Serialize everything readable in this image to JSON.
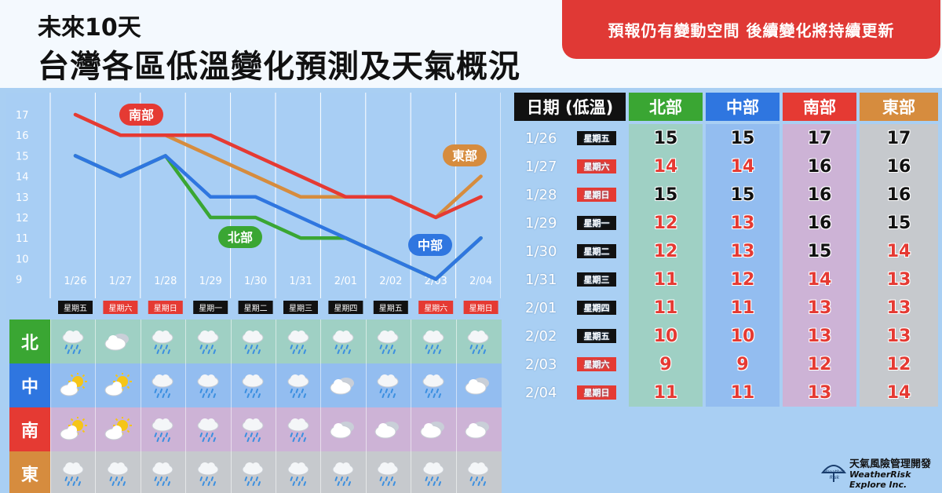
{
  "header": {
    "line1": "未來10天",
    "line2": "台灣各區低溫變化預測及天氣概況",
    "notice": "預報仍有變動空間 後續變化將持續更新"
  },
  "colors": {
    "north": "#3aa633",
    "central": "#2f76e0",
    "south": "#e53a33",
    "east": "#d68c3e"
  },
  "chart_data": {
    "type": "line",
    "categories": [
      "1/26",
      "1/27",
      "1/28",
      "1/29",
      "1/30",
      "1/31",
      "2/01",
      "2/02",
      "2/03",
      "2/04"
    ],
    "weekdays": [
      "星期五",
      "星期六",
      "星期日",
      "星期一",
      "星期二",
      "星期三",
      "星期四",
      "星期五",
      "星期六",
      "星期日"
    ],
    "weekend": [
      false,
      true,
      true,
      false,
      false,
      false,
      false,
      false,
      true,
      true
    ],
    "ylim": [
      9,
      17
    ],
    "yticks": [
      9,
      10,
      11,
      12,
      13,
      14,
      15,
      16,
      17
    ],
    "series": [
      {
        "name": "東部",
        "key": "east",
        "values": [
          17,
          16,
          16,
          15,
          14,
          13,
          13,
          13,
          12,
          14
        ]
      },
      {
        "name": "北部",
        "key": "north",
        "values": [
          15,
          14,
          15,
          12,
          12,
          11,
          11,
          10,
          9,
          11
        ]
      },
      {
        "name": "中部",
        "key": "central",
        "values": [
          15,
          14,
          15,
          13,
          13,
          12,
          11,
          10,
          9,
          11
        ]
      },
      {
        "name": "南部",
        "key": "south",
        "values": [
          17,
          16,
          16,
          16,
          15,
          14,
          13,
          13,
          12,
          13
        ]
      }
    ]
  },
  "weather": {
    "rows": [
      {
        "label": "北",
        "key": "north",
        "icons": [
          "rain",
          "cloudy",
          "rain",
          "rain",
          "rain",
          "rain",
          "rain",
          "rain",
          "rain",
          "rain"
        ]
      },
      {
        "label": "中",
        "key": "central",
        "icons": [
          "sun-cloud",
          "sun-cloud",
          "rain",
          "rain",
          "rain",
          "rain",
          "cloudy",
          "rain",
          "rain",
          "cloudy"
        ]
      },
      {
        "label": "南",
        "key": "south",
        "icons": [
          "sun-cloud",
          "sun-cloud",
          "rain",
          "rain",
          "rain",
          "rain",
          "cloudy",
          "cloudy",
          "cloudy",
          "cloudy"
        ]
      },
      {
        "label": "東",
        "key": "east",
        "icons": [
          "rain",
          "rain",
          "rain",
          "rain",
          "rain",
          "rain",
          "rain",
          "rain",
          "rain",
          "rain"
        ]
      }
    ]
  },
  "table": {
    "headers": [
      "日期 (低溫)",
      "北部",
      "中部",
      "南部",
      "東部"
    ],
    "rows": [
      {
        "date": "1/26",
        "day": "星期五",
        "weekend": false,
        "n": "15",
        "c": "15",
        "s": "17",
        "e": "17",
        "nr": false,
        "cr": false,
        "sr": false,
        "er": false
      },
      {
        "date": "1/27",
        "day": "星期六",
        "weekend": true,
        "n": "14",
        "c": "14",
        "s": "16",
        "e": "16",
        "nr": true,
        "cr": true,
        "sr": false,
        "er": false
      },
      {
        "date": "1/28",
        "day": "星期日",
        "weekend": true,
        "n": "15",
        "c": "15",
        "s": "16",
        "e": "16",
        "nr": false,
        "cr": false,
        "sr": false,
        "er": false
      },
      {
        "date": "1/29",
        "day": "星期一",
        "weekend": false,
        "n": "12",
        "c": "13",
        "s": "16",
        "e": "15",
        "nr": true,
        "cr": true,
        "sr": false,
        "er": false
      },
      {
        "date": "1/30",
        "day": "星期二",
        "weekend": false,
        "n": "12",
        "c": "13",
        "s": "15",
        "e": "14",
        "nr": true,
        "cr": true,
        "sr": false,
        "er": true
      },
      {
        "date": "1/31",
        "day": "星期三",
        "weekend": false,
        "n": "11",
        "c": "12",
        "s": "14",
        "e": "13",
        "nr": true,
        "cr": true,
        "sr": true,
        "er": true
      },
      {
        "date": "2/01",
        "day": "星期四",
        "weekend": false,
        "n": "11",
        "c": "11",
        "s": "13",
        "e": "13",
        "nr": true,
        "cr": true,
        "sr": true,
        "er": true
      },
      {
        "date": "2/02",
        "day": "星期五",
        "weekend": false,
        "n": "10",
        "c": "10",
        "s": "13",
        "e": "13",
        "nr": true,
        "cr": true,
        "sr": true,
        "er": true
      },
      {
        "date": "2/03",
        "day": "星期六",
        "weekend": true,
        "n": "9",
        "c": "9",
        "s": "12",
        "e": "12",
        "nr": true,
        "cr": true,
        "sr": true,
        "er": true
      },
      {
        "date": "2/04",
        "day": "星期日",
        "weekend": true,
        "n": "11",
        "c": "11",
        "s": "13",
        "e": "14",
        "nr": true,
        "cr": true,
        "sr": true,
        "er": true
      }
    ]
  },
  "logo": {
    "mark": "Weather Risk",
    "name": "天氣風險管理開發",
    "en": "WeatherRisk Explore Inc."
  }
}
